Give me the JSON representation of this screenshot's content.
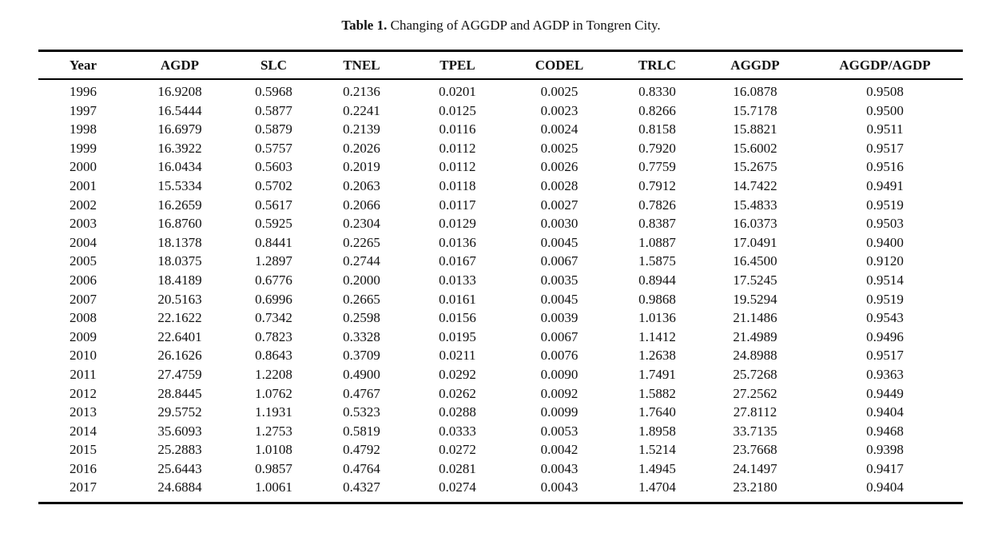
{
  "caption": {
    "label": "Table 1.",
    "text": " Changing of AGGDP and AGDP in Tongren City."
  },
  "table": {
    "columns": [
      "Year",
      "AGDP",
      "SLC",
      "TNEL",
      "TPEL",
      "CODEL",
      "TRLC",
      "AGGDP",
      "AGGDP/AGDP"
    ],
    "rows": [
      [
        "1996",
        "16.9208",
        "0.5968",
        "0.2136",
        "0.0201",
        "0.0025",
        "0.8330",
        "16.0878",
        "0.9508"
      ],
      [
        "1997",
        "16.5444",
        "0.5877",
        "0.2241",
        "0.0125",
        "0.0023",
        "0.8266",
        "15.7178",
        "0.9500"
      ],
      [
        "1998",
        "16.6979",
        "0.5879",
        "0.2139",
        "0.0116",
        "0.0024",
        "0.8158",
        "15.8821",
        "0.9511"
      ],
      [
        "1999",
        "16.3922",
        "0.5757",
        "0.2026",
        "0.0112",
        "0.0025",
        "0.7920",
        "15.6002",
        "0.9517"
      ],
      [
        "2000",
        "16.0434",
        "0.5603",
        "0.2019",
        "0.0112",
        "0.0026",
        "0.7759",
        "15.2675",
        "0.9516"
      ],
      [
        "2001",
        "15.5334",
        "0.5702",
        "0.2063",
        "0.0118",
        "0.0028",
        "0.7912",
        "14.7422",
        "0.9491"
      ],
      [
        "2002",
        "16.2659",
        "0.5617",
        "0.2066",
        "0.0117",
        "0.0027",
        "0.7826",
        "15.4833",
        "0.9519"
      ],
      [
        "2003",
        "16.8760",
        "0.5925",
        "0.2304",
        "0.0129",
        "0.0030",
        "0.8387",
        "16.0373",
        "0.9503"
      ],
      [
        "2004",
        "18.1378",
        "0.8441",
        "0.2265",
        "0.0136",
        "0.0045",
        "1.0887",
        "17.0491",
        "0.9400"
      ],
      [
        "2005",
        "18.0375",
        "1.2897",
        "0.2744",
        "0.0167",
        "0.0067",
        "1.5875",
        "16.4500",
        "0.9120"
      ],
      [
        "2006",
        "18.4189",
        "0.6776",
        "0.2000",
        "0.0133",
        "0.0035",
        "0.8944",
        "17.5245",
        "0.9514"
      ],
      [
        "2007",
        "20.5163",
        "0.6996",
        "0.2665",
        "0.0161",
        "0.0045",
        "0.9868",
        "19.5294",
        "0.9519"
      ],
      [
        "2008",
        "22.1622",
        "0.7342",
        "0.2598",
        "0.0156",
        "0.0039",
        "1.0136",
        "21.1486",
        "0.9543"
      ],
      [
        "2009",
        "22.6401",
        "0.7823",
        "0.3328",
        "0.0195",
        "0.0067",
        "1.1412",
        "21.4989",
        "0.9496"
      ],
      [
        "2010",
        "26.1626",
        "0.8643",
        "0.3709",
        "0.0211",
        "0.0076",
        "1.2638",
        "24.8988",
        "0.9517"
      ],
      [
        "2011",
        "27.4759",
        "1.2208",
        "0.4900",
        "0.0292",
        "0.0090",
        "1.7491",
        "25.7268",
        "0.9363"
      ],
      [
        "2012",
        "28.8445",
        "1.0762",
        "0.4767",
        "0.0262",
        "0.0092",
        "1.5882",
        "27.2562",
        "0.9449"
      ],
      [
        "2013",
        "29.5752",
        "1.1931",
        "0.5323",
        "0.0288",
        "0.0099",
        "1.7640",
        "27.8112",
        "0.9404"
      ],
      [
        "2014",
        "35.6093",
        "1.2753",
        "0.5819",
        "0.0333",
        "0.0053",
        "1.8958",
        "33.7135",
        "0.9468"
      ],
      [
        "2015",
        "25.2883",
        "1.0108",
        "0.4792",
        "0.0272",
        "0.0042",
        "1.5214",
        "23.7668",
        "0.9398"
      ],
      [
        "2016",
        "25.6443",
        "0.9857",
        "0.4764",
        "0.0281",
        "0.0043",
        "1.4945",
        "24.1497",
        "0.9417"
      ],
      [
        "2017",
        "24.6884",
        "1.0061",
        "0.4327",
        "0.0274",
        "0.0043",
        "1.4704",
        "23.2180",
        "0.9404"
      ]
    ]
  },
  "colors": {
    "text": "#111111",
    "rule": "#000000",
    "background": "#ffffff"
  }
}
